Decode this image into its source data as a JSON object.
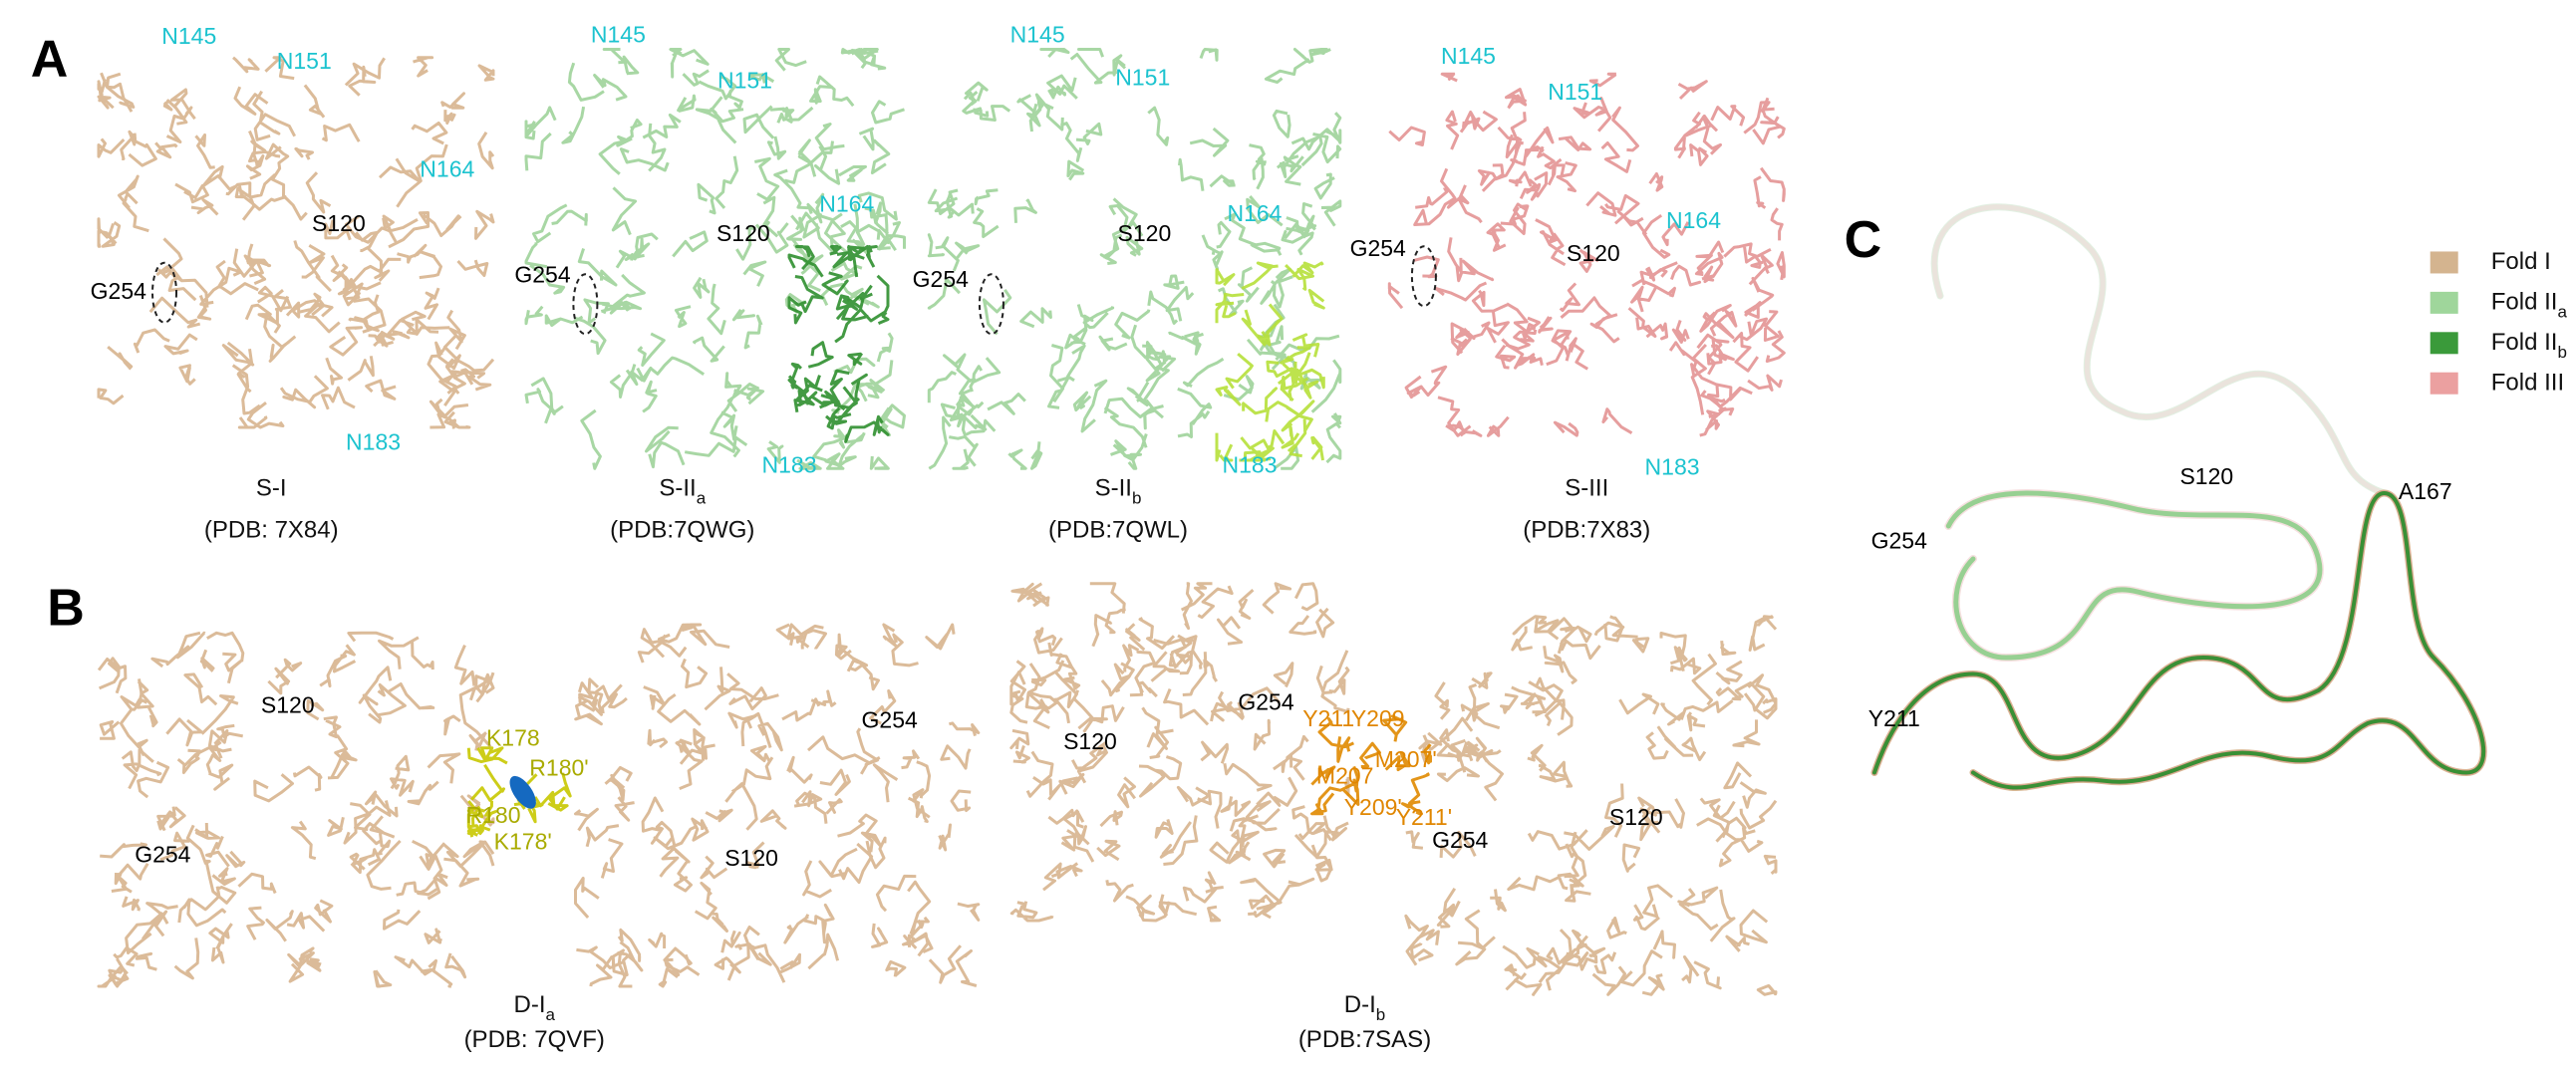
{
  "panels": [
    {
      "label": "A",
      "structures": [
        {
          "name": "S-I",
          "pdb": "(PDB: 7X84)",
          "residues": [
            {
              "text": "N145",
              "color": "#1cc3cf"
            },
            {
              "text": "N151",
              "color": "#1cc3cf"
            },
            {
              "text": "N164",
              "color": "#1cc3cf"
            },
            {
              "text": "S120",
              "color": "#000000"
            },
            {
              "text": "G254",
              "color": "#000000"
            },
            {
              "text": "N183",
              "color": "#1cc3cf"
            }
          ]
        },
        {
          "name": "S-II",
          "sub": "a",
          "pdb": "(PDB:7QWG)",
          "residues": [
            {
              "text": "N145",
              "color": "#1cc3cf"
            },
            {
              "text": "N151",
              "color": "#1cc3cf"
            },
            {
              "text": "N164",
              "color": "#1cc3cf"
            },
            {
              "text": "S120",
              "color": "#000000"
            },
            {
              "text": "G254",
              "color": "#000000"
            },
            {
              "text": "N183",
              "color": "#1cc3cf"
            }
          ]
        },
        {
          "name": "S-II",
          "sub": "b",
          "pdb": "(PDB:7QWL)",
          "residues": [
            {
              "text": "N145",
              "color": "#1cc3cf"
            },
            {
              "text": "N151",
              "color": "#1cc3cf"
            },
            {
              "text": "N164",
              "color": "#1cc3cf"
            },
            {
              "text": "S120",
              "color": "#000000"
            },
            {
              "text": "G254",
              "color": "#000000"
            },
            {
              "text": "N183",
              "color": "#1cc3cf"
            }
          ]
        },
        {
          "name": "S-III",
          "pdb": "(PDB:7X83)",
          "residues": [
            {
              "text": "N145",
              "color": "#1cc3cf"
            },
            {
              "text": "N151",
              "color": "#1cc3cf"
            },
            {
              "text": "N164",
              "color": "#1cc3cf"
            },
            {
              "text": "S120",
              "color": "#000000"
            },
            {
              "text": "G254",
              "color": "#000000"
            },
            {
              "text": "N183",
              "color": "#1cc3cf"
            }
          ]
        }
      ]
    },
    {
      "label": "B",
      "structures": [
        {
          "name": "D-I",
          "sub": "a",
          "pdb": "(PDB: 7QVF)",
          "residues": [
            {
              "text": "S120",
              "color": "#000000"
            },
            {
              "text": "K178",
              "color": "#a9ab00"
            },
            {
              "text": "R180'",
              "color": "#a9ab00"
            },
            {
              "text": "R180",
              "color": "#a9ab00"
            },
            {
              "text": "K178'",
              "color": "#a9ab00"
            },
            {
              "text": "G254",
              "color": "#000000"
            },
            {
              "text": "G254",
              "color": "#000000"
            },
            {
              "text": "S120",
              "color": "#000000"
            }
          ]
        },
        {
          "name": "D-I",
          "sub": "b",
          "pdb": "(PDB:7SAS)",
          "residues": [
            {
              "text": "G254",
              "color": "#000000"
            },
            {
              "text": "Y211",
              "color": "#e08600"
            },
            {
              "text": "Y209",
              "color": "#e08600"
            },
            {
              "text": "S120",
              "color": "#000000"
            },
            {
              "text": "M207'",
              "color": "#e08600"
            },
            {
              "text": "M207",
              "color": "#e08600"
            },
            {
              "text": "Y209'",
              "color": "#e08600"
            },
            {
              "text": "Y211'",
              "color": "#e08600"
            },
            {
              "text": "G254",
              "color": "#000000"
            },
            {
              "text": "S120",
              "color": "#000000"
            }
          ]
        }
      ]
    },
    {
      "label": "C",
      "residues": [
        {
          "text": "S120",
          "color": "#000000"
        },
        {
          "text": "A167",
          "color": "#000000"
        },
        {
          "text": "G254",
          "color": "#000000"
        },
        {
          "text": "Y211",
          "color": "#000000"
        }
      ],
      "legend": [
        {
          "name": "Fold I",
          "color": "#d4b48f"
        },
        {
          "name": "Fold II",
          "sub": "a",
          "color": "#9fd69b"
        },
        {
          "name": "Fold II",
          "sub": "b",
          "color": "#3a9a3a"
        },
        {
          "name": "Fold III",
          "color": "#eba0a0"
        }
      ]
    }
  ]
}
